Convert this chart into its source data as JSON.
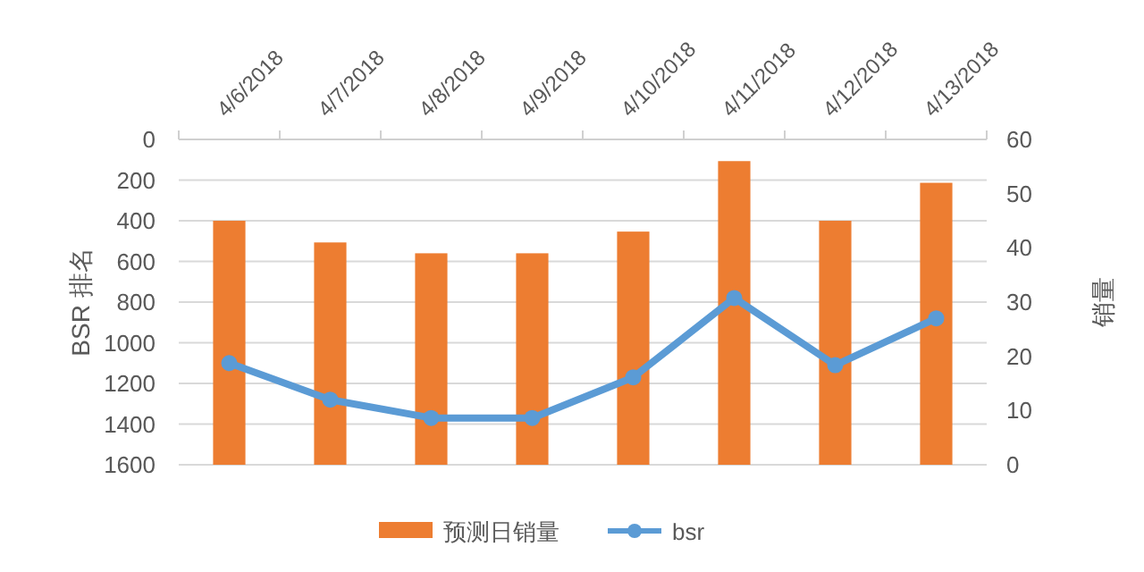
{
  "chart_data": {
    "type": "bar",
    "categories": [
      "4/6/2018",
      "4/7/2018",
      "4/8/2018",
      "4/9/2018",
      "4/10/2018",
      "4/11/2018",
      "4/12/2018",
      "4/13/2018"
    ],
    "series": [
      {
        "name": "预测日销量",
        "axis": "y2",
        "color": "#ed7d31",
        "values": [
          45,
          41,
          39,
          39,
          43,
          56,
          45,
          52
        ]
      },
      {
        "name": "bsr",
        "type": "line",
        "axis": "y",
        "color": "#5b9bd5",
        "marker": "circle",
        "values": [
          1100,
          1280,
          1370,
          1370,
          1170,
          780,
          1110,
          880
        ]
      }
    ],
    "ylabel": "BSR 排名",
    "y2label": "销量",
    "ylim": [
      1600,
      0
    ],
    "yticks": [
      0,
      200,
      400,
      600,
      800,
      1000,
      1200,
      1400,
      1600
    ],
    "y2lim": [
      0,
      60
    ],
    "y2ticks": [
      0,
      10,
      20,
      30,
      40,
      50,
      60
    ],
    "grid": "y",
    "legend": "bottom"
  }
}
